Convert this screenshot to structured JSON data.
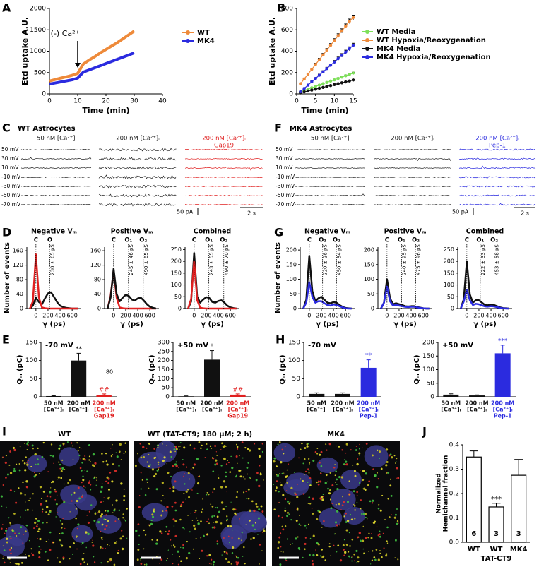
{
  "chart_data": [
    {
      "type": "line",
      "panel_label": "A",
      "xlabel": "Time (min)",
      "ylabel": "Etd uptake A.U.",
      "annotation": "(-) Ca²⁺",
      "x": [
        0,
        2,
        4,
        6,
        8,
        10,
        12,
        14,
        16,
        18,
        20,
        22,
        24,
        26,
        28,
        30
      ],
      "series": [
        {
          "name": "WT",
          "color": "#ee8a3a",
          "values": [
            300,
            335,
            370,
            400,
            435,
            480,
            700,
            790,
            870,
            960,
            1040,
            1120,
            1200,
            1290,
            1380,
            1470
          ]
        },
        {
          "name": "MK4",
          "color": "#2b2bdf",
          "values": [
            230,
            255,
            280,
            305,
            330,
            370,
            510,
            560,
            610,
            660,
            710,
            760,
            810,
            860,
            910,
            960
          ]
        }
      ],
      "xlim": [
        0,
        40
      ],
      "xticks": [
        0,
        10,
        20,
        30,
        40
      ],
      "ylim": [
        0,
        2000
      ],
      "yticks": [
        0,
        500,
        1000,
        1500,
        2000
      ]
    },
    {
      "type": "line",
      "panel_label": "B",
      "xlabel": "Time (min)",
      "ylabel": "Etd uptake A.U.",
      "markers": true,
      "x": [
        1,
        2,
        3,
        4,
        5,
        6,
        7,
        8,
        9,
        10,
        11,
        12,
        13,
        14,
        15
      ],
      "series": [
        {
          "name": "WT Media",
          "color": "#7ee05a",
          "values": [
            20,
            32,
            45,
            57,
            70,
            82,
            95,
            107,
            120,
            132,
            145,
            157,
            170,
            182,
            195
          ],
          "errors": [
            3,
            3,
            4,
            4,
            4,
            5,
            5,
            5,
            6,
            6,
            6,
            7,
            7,
            7,
            8
          ]
        },
        {
          "name": "WT Hypoxia/Reoxygenation",
          "color": "#ee8a3a",
          "values": [
            95,
            140,
            185,
            230,
            275,
            320,
            365,
            410,
            455,
            500,
            545,
            590,
            635,
            680,
            715
          ],
          "errors": [
            8,
            9,
            10,
            11,
            12,
            13,
            14,
            15,
            16,
            17,
            18,
            19,
            20,
            21,
            22
          ]
        },
        {
          "name": "MK4 Media",
          "color": "#111111",
          "values": [
            10,
            19,
            27,
            36,
            44,
            53,
            61,
            70,
            78,
            87,
            95,
            104,
            112,
            121,
            130
          ],
          "errors": [
            2,
            2,
            2,
            3,
            3,
            3,
            3,
            4,
            4,
            4,
            4,
            5,
            5,
            5,
            5
          ]
        },
        {
          "name": "MK4 Hypoxia/Reoxygenation",
          "color": "#2b2bdf",
          "values": [
            20,
            51,
            82,
            113,
            144,
            175,
            206,
            237,
            268,
            299,
            330,
            361,
            392,
            423,
            455
          ],
          "errors": [
            5,
            6,
            7,
            8,
            9,
            10,
            11,
            12,
            13,
            14,
            15,
            16,
            17,
            18,
            19
          ]
        }
      ],
      "xlim": [
        0,
        15
      ],
      "xticks": [
        0,
        5,
        10,
        15
      ],
      "ylim": [
        0,
        800
      ],
      "yticks": [
        0,
        200,
        400,
        600,
        800
      ]
    },
    {
      "type": "traces",
      "panel_label": "C",
      "title": "WT Astrocytes",
      "columns": [
        {
          "lines": [
            "50 nM [Ca²⁺]ᵢ"
          ],
          "color": "#222222"
        },
        {
          "lines": [
            "200 nM [Ca²⁺]ᵢ"
          ],
          "color": "#222222"
        },
        {
          "lines": [
            "200 nM [Ca²⁺]ᵢ",
            "Gap19"
          ],
          "color": "#e02020"
        }
      ],
      "voltages": [
        "50 mV",
        "30 mV",
        "10 mV",
        "-10 mV",
        "-30 mV",
        "-50 mV",
        "-70 mV"
      ],
      "current_scale": "50 pA",
      "time_scale": "2 s"
    },
    {
      "type": "traces",
      "panel_label": "F",
      "title": "MK4 Astrocytes",
      "columns": [
        {
          "lines": [
            "50 nM [Ca²⁺]ᵢ"
          ],
          "color": "#222222"
        },
        {
          "lines": [
            "200 nM [Ca²⁺]ᵢ"
          ],
          "color": "#222222"
        },
        {
          "lines": [
            "200 nM [Ca²⁺]ᵢ",
            "Pep-1"
          ],
          "color": "#2b2bdf"
        }
      ],
      "voltages": [
        "50 mV",
        "30 mV",
        "10 mV",
        "-10 mV",
        "-30 mV",
        "-50 mV",
        "-70 mV"
      ],
      "current_scale": "50 pA",
      "time_scale": "2 s"
    },
    {
      "type": "histfit",
      "panel_label": "D",
      "xlabel": "γ (ps)",
      "ylabel": "Number of events",
      "x": [
        -100,
        -50,
        0,
        50,
        100,
        150,
        200,
        250,
        300,
        350,
        400,
        450,
        500,
        550,
        600,
        650,
        700
      ],
      "xlim": [
        -150,
        750
      ],
      "xticks": [
        0,
        200,
        400,
        600
      ],
      "subplots": [
        {
          "title": "Negative Vₘ",
          "ylim": [
            0,
            170
          ],
          "yticks": [
            0,
            40,
            80,
            120,
            160
          ],
          "series": [
            {
              "color": "#111111",
              "values": [
                0,
                8,
                30,
                18,
                12,
                28,
                42,
                45,
                32,
                18,
                8,
                4,
                2,
                1,
                0,
                0,
                0
              ]
            },
            {
              "color": "#e02020",
              "values": [
                0,
                20,
                150,
                30,
                3,
                1,
                0,
                0,
                0,
                0,
                0,
                0,
                0,
                0,
                0,
                0,
                0
              ]
            }
          ],
          "peaks": [
            {
              "label": "C",
              "value": 0
            },
            {
              "label": "O",
              "value": 230,
              "note": "230 ± 65 pS"
            }
          ]
        },
        {
          "title": "Positive Vₘ",
          "ylim": [
            0,
            170
          ],
          "yticks": [
            0,
            40,
            80,
            120,
            160
          ],
          "series": [
            {
              "color": "#e02020",
              "values": [
                0,
                35,
                105,
                30,
                3,
                1,
                0,
                0,
                0,
                0,
                0,
                0,
                0,
                0,
                0,
                0,
                0
              ]
            },
            {
              "color": "#111111",
              "values": [
                0,
                30,
                110,
                40,
                20,
                30,
                38,
                35,
                25,
                22,
                28,
                30,
                22,
                12,
                5,
                2,
                0
              ]
            }
          ],
          "peaks": [
            {
              "label": "C",
              "value": 0
            },
            {
              "label": "O₁",
              "value": 245,
              "note": "245 ± 46 pS"
            },
            {
              "label": "O₂",
              "value": 490,
              "note": "490 ± 65 pS"
            }
          ]
        },
        {
          "title": "Combined",
          "ylim": [
            0,
            260
          ],
          "yticks": [
            0,
            50,
            100,
            150,
            200,
            250
          ],
          "series": [
            {
              "color": "#111111",
              "values": [
                0,
                30,
                235,
                50,
                25,
                38,
                48,
                45,
                28,
                25,
                32,
                35,
                25,
                12,
                5,
                2,
                0
              ]
            },
            {
              "color": "#e02020",
              "values": [
                0,
                40,
                200,
                35,
                4,
                1,
                0,
                0,
                0,
                0,
                0,
                0,
                0,
                0,
                0,
                0,
                0
              ]
            }
          ],
          "peaks": [
            {
              "label": "C",
              "value": 0
            },
            {
              "label": "O₁",
              "value": 243,
              "note": "243 ± 55 pS"
            },
            {
              "label": "O₂",
              "value": 490,
              "note": "490 ± 70 pS"
            }
          ]
        }
      ]
    },
    {
      "type": "histfit",
      "panel_label": "G",
      "xlabel": "γ (ps)",
      "ylabel": "Number of events",
      "x": [
        -100,
        -50,
        0,
        50,
        100,
        150,
        200,
        250,
        300,
        350,
        400,
        450,
        500,
        550,
        600,
        650,
        700
      ],
      "xlim": [
        -150,
        750
      ],
      "xticks": [
        0,
        200,
        400,
        600
      ],
      "subplots": [
        {
          "title": "Negative Vₘ",
          "ylim": [
            0,
            210
          ],
          "yticks": [
            0,
            50,
            100,
            150,
            200
          ],
          "series": [
            {
              "color": "#111111",
              "values": [
                0,
                30,
                180,
                60,
                25,
                35,
                40,
                30,
                20,
                18,
                22,
                20,
                12,
                6,
                2,
                1,
                0
              ]
            },
            {
              "color": "#2b2bdf",
              "values": [
                0,
                20,
                90,
                40,
                20,
                25,
                25,
                18,
                12,
                10,
                14,
                12,
                8,
                4,
                1,
                0,
                0
              ]
            }
          ],
          "peaks": [
            {
              "label": "C",
              "value": 0
            },
            {
              "label": "O₁",
              "value": 220,
              "note": "220 ± 28 pS"
            },
            {
              "label": "O₂",
              "value": 450,
              "note": "450 ± 54 pS"
            }
          ]
        },
        {
          "title": "Positive Vₘ",
          "ylim": [
            0,
            210
          ],
          "yticks": [
            0,
            50,
            100,
            150,
            200
          ],
          "series": [
            {
              "color": "#111111",
              "values": [
                0,
                20,
                100,
                35,
                15,
                18,
                15,
                12,
                8,
                7,
                8,
                8,
                5,
                3,
                1,
                0,
                0
              ]
            },
            {
              "color": "#2b2bdf",
              "values": [
                0,
                20,
                75,
                25,
                10,
                12,
                10,
                8,
                6,
                5,
                6,
                6,
                4,
                2,
                1,
                0,
                0
              ]
            }
          ],
          "peaks": [
            {
              "label": "C",
              "value": 0
            },
            {
              "label": "O₁",
              "value": 240,
              "note": "240 ± 95 pS"
            },
            {
              "label": "O₂",
              "value": 475,
              "note": "475 ± 96 pS"
            }
          ]
        },
        {
          "title": "Combined",
          "ylim": [
            0,
            260
          ],
          "yticks": [
            0,
            50,
            100,
            150,
            200,
            250
          ],
          "series": [
            {
              "color": "#111111",
              "values": [
                0,
                40,
                200,
                60,
                25,
                35,
                35,
                25,
                15,
                14,
                16,
                15,
                10,
                5,
                2,
                1,
                0
              ]
            },
            {
              "color": "#2b2bdf",
              "values": [
                0,
                30,
                80,
                35,
                15,
                20,
                18,
                13,
                9,
                8,
                10,
                9,
                6,
                3,
                1,
                0,
                0
              ]
            }
          ],
          "peaks": [
            {
              "label": "C",
              "value": 0
            },
            {
              "label": "O₁",
              "value": 222,
              "note": "222 ± 33 pS"
            },
            {
              "label": "O₂",
              "value": 453,
              "note": "453 ± 58 pS"
            }
          ]
        }
      ]
    },
    {
      "type": "bargroup",
      "panel_label": "E",
      "ylabel": "Qₘ (pC)",
      "categories": [
        {
          "lines": [
            "50 nM",
            "[Ca²⁺]ᵢ"
          ],
          "color": "#111111"
        },
        {
          "lines": [
            "200 nM",
            "[Ca²⁺]ᵢ"
          ],
          "color": "#111111"
        },
        {
          "lines": [
            "200 nM",
            "[Ca²⁺]ᵢ",
            "Gap19"
          ],
          "color": "#e02020"
        }
      ],
      "subplots": [
        {
          "title": "-70 mV",
          "ylim": [
            0,
            150
          ],
          "yticks": [
            0,
            50,
            100,
            150
          ],
          "values": [
            2,
            100,
            5
          ],
          "errors": [
            1,
            20,
            3
          ],
          "annotations": [
            null,
            "**",
            "##"
          ],
          "note": "80"
        },
        {
          "title": "+50 mV",
          "ylim": [
            0,
            300
          ],
          "yticks": [
            0,
            50,
            100,
            150,
            200,
            250,
            300
          ],
          "values": [
            3,
            205,
            12
          ],
          "errors": [
            2,
            50,
            4
          ],
          "annotations": [
            null,
            "*",
            "##"
          ]
        }
      ]
    },
    {
      "type": "bargroup",
      "panel_label": "H",
      "ylabel": "Qₘ (pC)",
      "categories": [
        {
          "lines": [
            "50 nM",
            "[Ca²⁺]ᵢ"
          ],
          "color": "#111111"
        },
        {
          "lines": [
            "200 nM",
            "[Ca²⁺]ᵢ"
          ],
          "color": "#111111"
        },
        {
          "lines": [
            "200 nM",
            "[Ca²⁺]ᵢ",
            "Pep-1"
          ],
          "color": "#2b2bdf"
        }
      ],
      "subplots": [
        {
          "title": "-70 mV",
          "ylim": [
            0,
            150
          ],
          "yticks": [
            0,
            50,
            100,
            150
          ],
          "values": [
            8,
            8,
            80
          ],
          "errors": [
            3,
            3,
            22
          ],
          "annotations": [
            null,
            null,
            "**"
          ]
        },
        {
          "title": "+50 mV",
          "ylim": [
            0,
            200
          ],
          "yticks": [
            0,
            50,
            100,
            150,
            200
          ],
          "values": [
            8,
            5,
            160
          ],
          "errors": [
            3,
            2,
            30
          ],
          "annotations": [
            null,
            null,
            "***"
          ]
        }
      ]
    },
    {
      "type": "images",
      "panel_label": "I",
      "titles": [
        "WT",
        "WT (TAT-CT9; 180 µM; 2 h)",
        "MK4"
      ]
    },
    {
      "type": "bar",
      "panel_label": "J",
      "ylabel": [
        "Normalized",
        "Hemichannel fraction"
      ],
      "categories": [
        "WT",
        "WT",
        "MK4"
      ],
      "group_label": "TAT-CT9",
      "values": [
        0.35,
        0.145,
        0.275
      ],
      "errors": [
        0.025,
        0.015,
        0.065
      ],
      "n_labels": [
        "6",
        "3",
        "3"
      ],
      "annotations": [
        null,
        "***",
        null
      ],
      "color": "#ffffff",
      "ylim": [
        0,
        0.4
      ],
      "yticks": [
        {
          "value": 0,
          "label": "0.0"
        },
        0.1,
        0.2,
        0.3,
        0.4
      ]
    }
  ]
}
